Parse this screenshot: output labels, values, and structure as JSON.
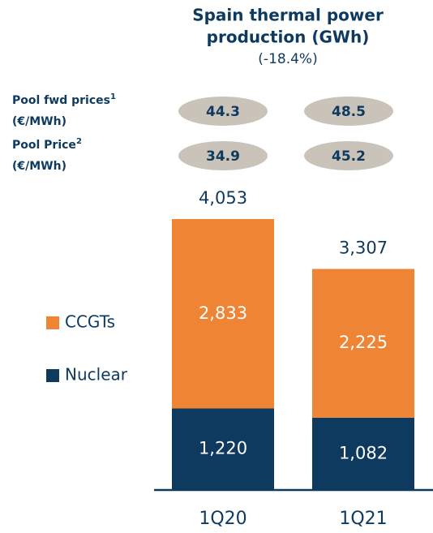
{
  "chart_data": {
    "type": "stacked_bar",
    "title": [
      "Spain thermal power",
      "production (GWh)"
    ],
    "subtitle": "(-18.4%)",
    "categories": [
      "1Q20",
      "1Q21"
    ],
    "series": [
      {
        "name": "Nuclear",
        "color": "#0e3a5f",
        "values": [
          1220,
          1082
        ],
        "value_labels": [
          "1,220",
          "1,082"
        ]
      },
      {
        "name": "CCGTs",
        "color": "#ee8434",
        "values": [
          2833,
          2225
        ],
        "value_labels": [
          "2,833",
          "2,225"
        ]
      }
    ],
    "totals": [
      4053,
      3307
    ],
    "total_labels": [
      "4,053",
      "3,307"
    ],
    "price_rows": [
      {
        "label": "Pool fwd prices",
        "note": "1",
        "unit": "(€/MWh)",
        "values": [
          44.3,
          48.5
        ]
      },
      {
        "label": "Pool Price",
        "note": "2",
        "unit": "(€/MWh)",
        "values": [
          34.9,
          45.2
        ]
      }
    ]
  }
}
